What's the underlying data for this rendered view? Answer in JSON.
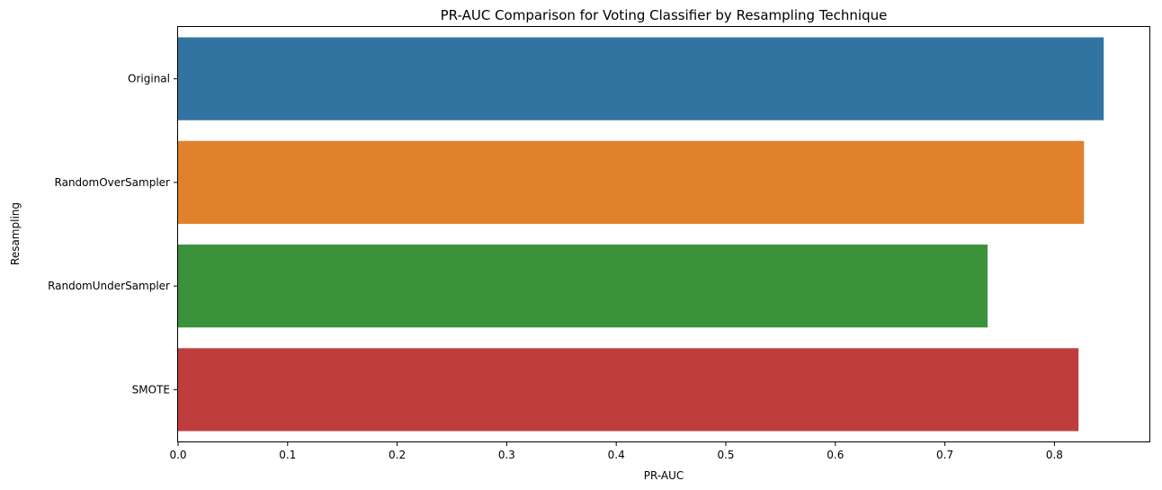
{
  "chart_data": {
    "type": "bar",
    "orientation": "horizontal",
    "title": "PR-AUC Comparison for Voting Classifier by Resampling Technique",
    "xlabel": "PR-AUC",
    "ylabel": "Resampling",
    "categories": [
      "Original",
      "RandomOverSampler",
      "RandomUnderSampler",
      "SMOTE"
    ],
    "values": [
      0.845,
      0.827,
      0.739,
      0.822
    ],
    "colors": [
      "#3274a1",
      "#e1812c",
      "#3a923a",
      "#c03d3e"
    ],
    "xlim": [
      0,
      0.8867
    ],
    "xticks": [
      0.0,
      0.1,
      0.2,
      0.3,
      0.4,
      0.5,
      0.6,
      0.7,
      0.8
    ],
    "xtick_labels": [
      "0.0",
      "0.1",
      "0.2",
      "0.3",
      "0.4",
      "0.5",
      "0.6",
      "0.7",
      "0.8"
    ],
    "grid": false,
    "legend": "none"
  }
}
